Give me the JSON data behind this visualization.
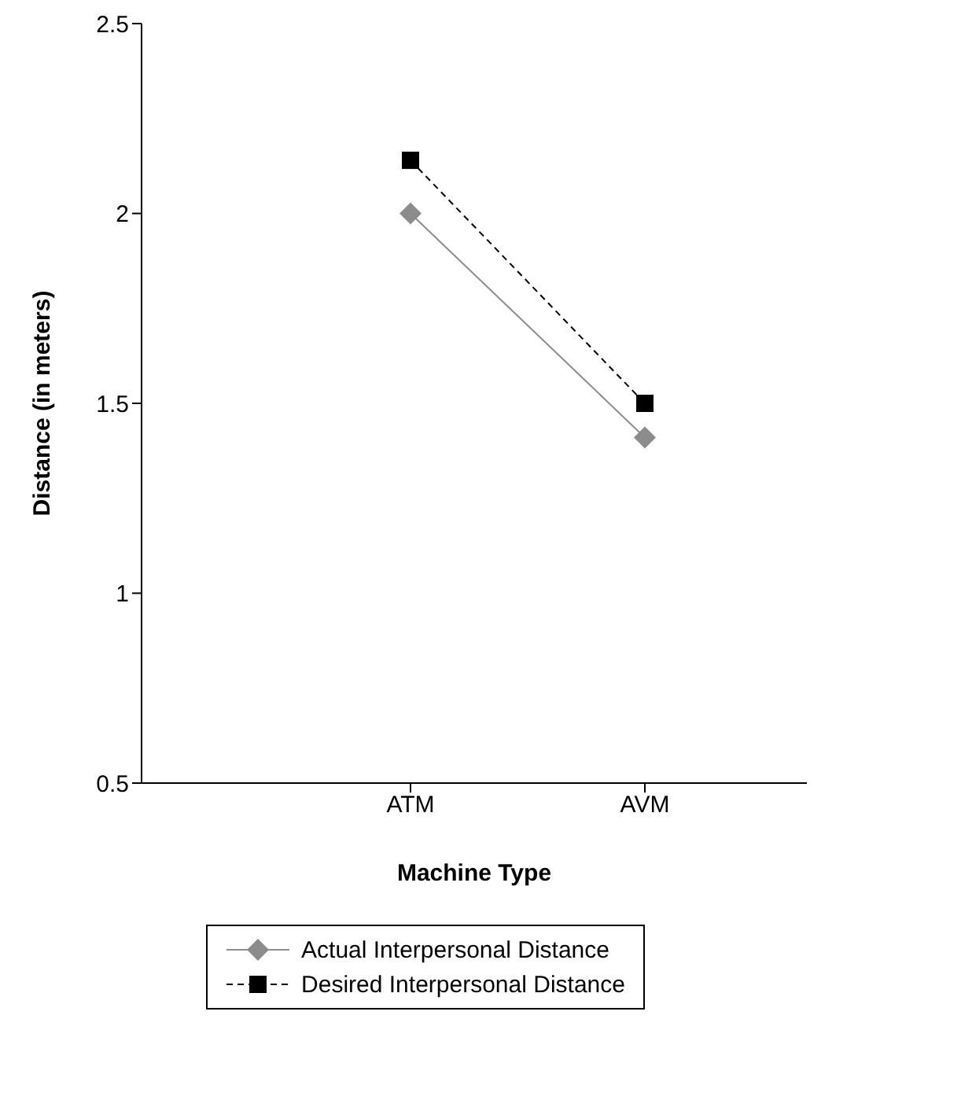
{
  "chart_data": {
    "type": "line",
    "xlabel": "Machine Type",
    "ylabel": "Distance (in meters)",
    "categories": [
      "ATM",
      "AVM"
    ],
    "series": [
      {
        "name": "Actual Interpersonal Distance",
        "color": "#8c8c8c",
        "values": [
          2.0,
          1.41
        ],
        "marker": "diamond",
        "line_style": "solid"
      },
      {
        "name": "Desired Interpersonal Distance",
        "color": "#000000",
        "values": [
          2.14,
          1.5
        ],
        "marker": "square",
        "line_style": "dashed"
      }
    ],
    "ylim": [
      0.5,
      2.5
    ],
    "yticks": [
      0.5,
      1,
      1.5,
      2,
      2.5
    ],
    "grid": false,
    "legend": "bottom"
  }
}
